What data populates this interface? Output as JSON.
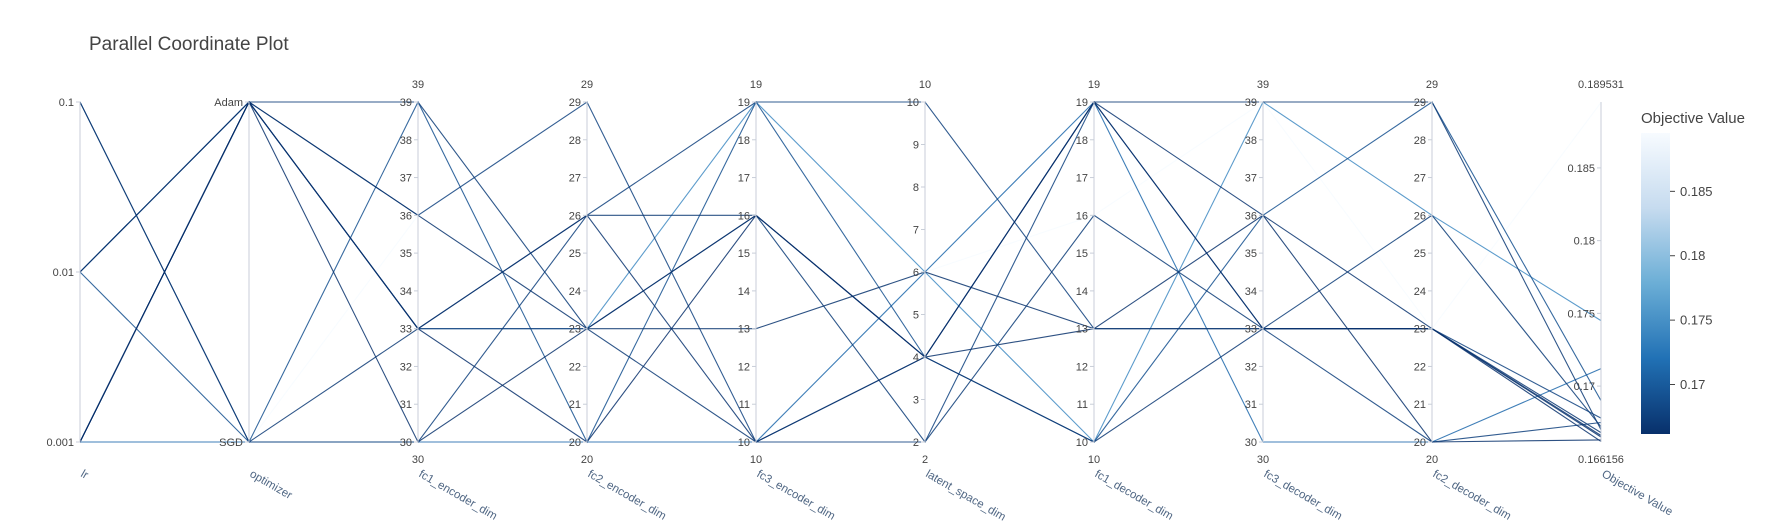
{
  "chart_data": {
    "type": "parallel_coordinates",
    "title": "Parallel Coordinate Plot",
    "axes": [
      {
        "label": "lr",
        "type": "log",
        "range": [
          0.001,
          0.1
        ],
        "ticks": [
          0.001,
          0.01,
          0.1
        ],
        "tick_labels": [
          "0.001",
          "0.01",
          "0.1"
        ],
        "top_label": "",
        "bottom_label": ""
      },
      {
        "label": "optimizer",
        "type": "categorical",
        "categories": [
          "SGD",
          "Adam"
        ],
        "ticks": [
          0,
          1
        ],
        "tick_labels": [
          "SGD",
          "Adam"
        ],
        "top_label": "",
        "bottom_label": ""
      },
      {
        "label": "fc1_encoder_dim",
        "type": "linear",
        "range": [
          30,
          39
        ],
        "ticks": [
          30,
          31,
          32,
          33,
          34,
          35,
          36,
          37,
          38,
          39
        ],
        "tick_labels": [
          "30",
          "31",
          "32",
          "33",
          "34",
          "35",
          "36",
          "37",
          "38",
          "39"
        ],
        "top_label": "39",
        "bottom_label": "30"
      },
      {
        "label": "fc2_encoder_dim",
        "type": "linear",
        "range": [
          20,
          29
        ],
        "ticks": [
          20,
          21,
          22,
          23,
          24,
          25,
          26,
          27,
          28,
          29
        ],
        "tick_labels": [
          "20",
          "21",
          "22",
          "23",
          "24",
          "25",
          "26",
          "27",
          "28",
          "29"
        ],
        "top_label": "29",
        "bottom_label": "20"
      },
      {
        "label": "fc3_encoder_dim",
        "type": "linear",
        "range": [
          10,
          19
        ],
        "ticks": [
          10,
          11,
          12,
          13,
          14,
          15,
          16,
          17,
          18,
          19
        ],
        "tick_labels": [
          "10",
          "11",
          "12",
          "13",
          "14",
          "15",
          "16",
          "17",
          "18",
          "19"
        ],
        "top_label": "19",
        "bottom_label": "10"
      },
      {
        "label": "latent_space_dim",
        "type": "linear",
        "range": [
          2,
          10
        ],
        "ticks": [
          2,
          3,
          4,
          5,
          6,
          7,
          8,
          9,
          10
        ],
        "tick_labels": [
          "2",
          "3",
          "4",
          "5",
          "6",
          "7",
          "8",
          "9",
          "10"
        ],
        "top_label": "10",
        "bottom_label": "2"
      },
      {
        "label": "fc1_decoder_dim",
        "type": "linear",
        "range": [
          10,
          19
        ],
        "ticks": [
          10,
          11,
          12,
          13,
          14,
          15,
          16,
          17,
          18,
          19
        ],
        "tick_labels": [
          "10",
          "11",
          "12",
          "13",
          "14",
          "15",
          "16",
          "17",
          "18",
          "19"
        ],
        "top_label": "19",
        "bottom_label": "10"
      },
      {
        "label": "fc3_decoder_dim",
        "type": "linear",
        "range": [
          30,
          39
        ],
        "ticks": [
          30,
          31,
          32,
          33,
          34,
          35,
          36,
          37,
          38,
          39
        ],
        "tick_labels": [
          "30",
          "31",
          "32",
          "33",
          "34",
          "35",
          "36",
          "37",
          "38",
          "39"
        ],
        "top_label": "39",
        "bottom_label": "30"
      },
      {
        "label": "fc2_decoder_dim",
        "type": "linear",
        "range": [
          20,
          29
        ],
        "ticks": [
          20,
          21,
          22,
          23,
          24,
          25,
          26,
          27,
          28,
          29
        ],
        "tick_labels": [
          "20",
          "21",
          "22",
          "23",
          "24",
          "25",
          "26",
          "27",
          "28",
          "29"
        ],
        "top_label": "29",
        "bottom_label": "20"
      },
      {
        "label": "Objective Value",
        "type": "linear",
        "range": [
          0.166156,
          0.189531
        ],
        "ticks": [
          0.17,
          0.175,
          0.18,
          0.185
        ],
        "tick_labels": [
          "0.17",
          "0.175",
          "0.18",
          "0.185"
        ],
        "top_label": "0.189531",
        "bottom_label": "0.166156"
      }
    ],
    "trials": [
      [
        0.001,
        1,
        33,
        20,
        16,
        4,
        19,
        33,
        23,
        0.1662
      ],
      [
        0.001,
        1,
        30,
        23,
        16,
        4,
        13,
        36,
        20,
        0.1663
      ],
      [
        0.01,
        1,
        36,
        23,
        13,
        6,
        13,
        33,
        23,
        0.1665
      ],
      [
        0.001,
        1,
        33,
        26,
        10,
        4,
        19,
        36,
        23,
        0.1666
      ],
      [
        0.01,
        1,
        33,
        26,
        16,
        4,
        10,
        33,
        23,
        0.1668
      ],
      [
        0.1,
        0,
        33,
        23,
        10,
        4,
        19,
        39,
        29,
        0.167
      ],
      [
        0.001,
        1,
        39,
        23,
        16,
        2,
        16,
        33,
        26,
        0.1672
      ],
      [
        0.1,
        0,
        30,
        26,
        19,
        10,
        13,
        33,
        20,
        0.1675
      ],
      [
        0.001,
        1,
        36,
        29,
        10,
        2,
        19,
        33,
        23,
        0.1678
      ],
      [
        0.01,
        0,
        39,
        20,
        19,
        4,
        10,
        36,
        29,
        0.169
      ],
      [
        0.001,
        0,
        30,
        20,
        10,
        6,
        19,
        30,
        20,
        0.1712
      ],
      [
        0.01,
        1,
        33,
        23,
        19,
        6,
        10,
        39,
        26,
        0.1745
      ],
      [
        0.001,
        0,
        36,
        23,
        13,
        6,
        16,
        39,
        23,
        0.1895
      ]
    ],
    "colorscale": {
      "title": "Objective Value",
      "range": [
        0.166156,
        0.189531
      ],
      "ticks": [
        0.17,
        0.175,
        0.18,
        0.185
      ],
      "tick_labels": [
        "0.17",
        "0.175",
        "0.18",
        "0.185"
      ],
      "colors": [
        "#08306b",
        "#2171b5",
        "#6baed6",
        "#c6dbef",
        "#f7fbff"
      ]
    }
  }
}
